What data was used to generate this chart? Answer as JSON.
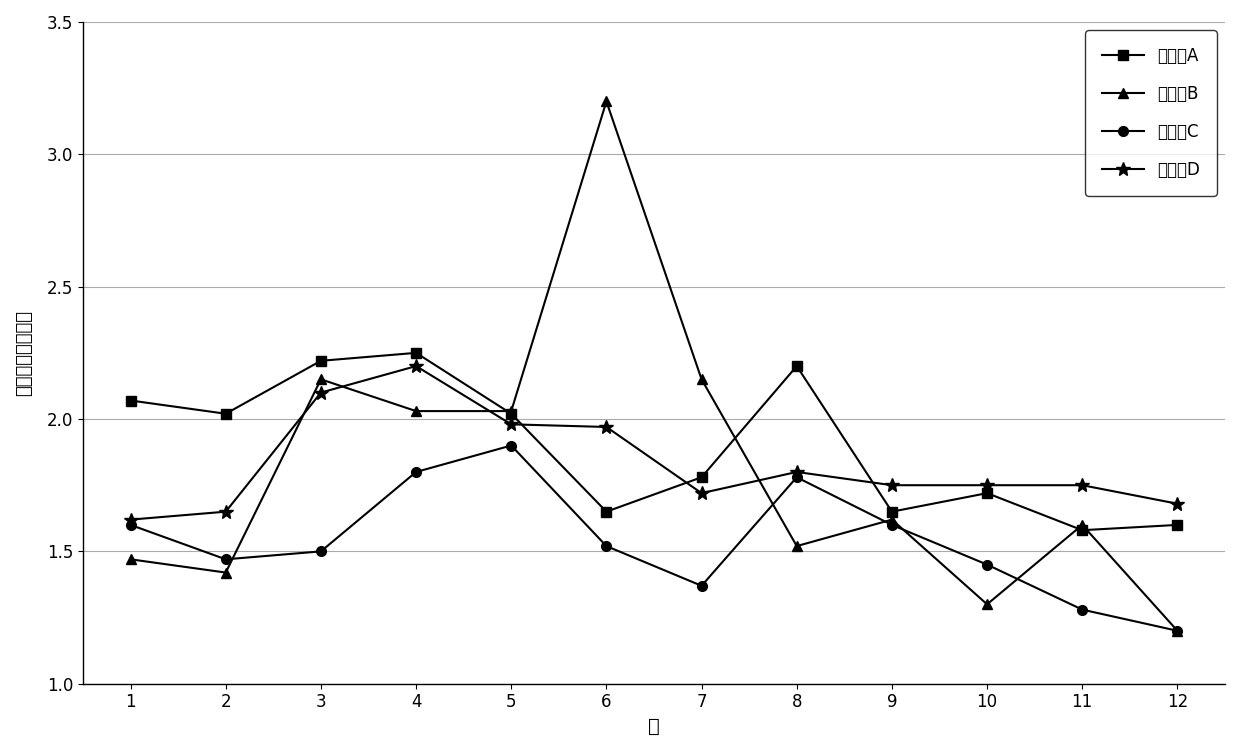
{
  "months": [
    1,
    2,
    3,
    4,
    5,
    6,
    7,
    8,
    9,
    10,
    11,
    12
  ],
  "station_A": [
    2.07,
    2.02,
    2.22,
    2.25,
    2.02,
    1.65,
    1.78,
    2.2,
    1.65,
    1.72,
    1.58,
    1.6
  ],
  "station_B": [
    1.47,
    1.42,
    2.15,
    2.03,
    2.03,
    3.2,
    2.15,
    1.52,
    1.62,
    1.3,
    1.6,
    1.2
  ],
  "station_C": [
    1.6,
    1.47,
    1.5,
    1.8,
    1.9,
    1.52,
    1.37,
    1.78,
    1.6,
    1.45,
    1.28,
    1.2
  ],
  "station_D": [
    1.62,
    1.65,
    2.1,
    2.2,
    1.98,
    1.97,
    1.72,
    1.8,
    1.75,
    1.75,
    1.75,
    1.68
  ],
  "label_A": "监测站A",
  "label_B": "监测站B",
  "label_C": "监测站C",
  "label_D": "监测站D",
  "xlabel": "月",
  "ylabel": "扬尘平均相对浓度",
  "ylim": [
    1.0,
    3.5
  ],
  "yticks": [
    1.0,
    1.5,
    2.0,
    2.5,
    3.0,
    3.5
  ],
  "line_color": "#000000",
  "background_color": "#ffffff",
  "marker_A": "s",
  "marker_B": "^",
  "marker_C": "o",
  "marker_D": "*"
}
